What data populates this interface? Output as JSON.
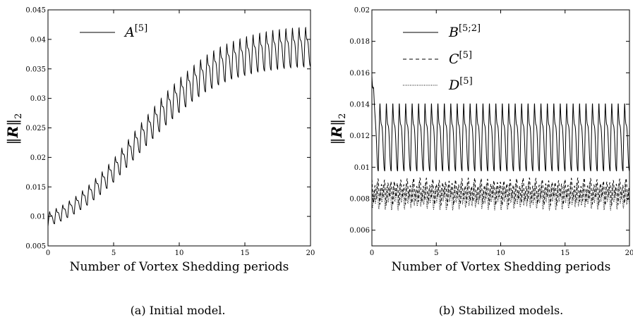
{
  "chart_data": [
    {
      "type": "line",
      "panel": "a",
      "caption": "(a) Initial model.",
      "xlabel": "Number of Vortex Shedding periods",
      "ylabel": "||R||2",
      "xlim": [
        0,
        20
      ],
      "ylim": [
        0.005,
        0.045
      ],
      "xticks": [
        "0",
        "5",
        "10",
        "15",
        "20"
      ],
      "yticks": [
        "0.005",
        "0.01",
        "0.015",
        "0.02",
        "0.025",
        "0.03",
        "0.035",
        "0.04",
        "0.045"
      ],
      "legend_position": "top-left",
      "series": [
        {
          "name": "A[5]",
          "dash": "solid",
          "periods_per_unit": 2,
          "x": [
            0,
            1,
            2,
            3,
            4,
            5,
            6,
            7,
            8,
            9,
            10,
            11,
            12,
            13,
            14,
            15,
            16,
            17,
            18,
            19,
            20
          ],
          "y_mean": [
            0.0095,
            0.0105,
            0.0118,
            0.0135,
            0.0155,
            0.0178,
            0.0205,
            0.0232,
            0.0258,
            0.0283,
            0.0305,
            0.0325,
            0.0342,
            0.0355,
            0.0365,
            0.0372,
            0.0378,
            0.0382,
            0.0385,
            0.0387,
            0.0388
          ],
          "y_amplitude": [
            0.0012,
            0.0013,
            0.0014,
            0.0016,
            0.0018,
            0.002,
            0.0022,
            0.0024,
            0.0026,
            0.0028,
            0.0029,
            0.003,
            0.0031,
            0.0032,
            0.0032,
            0.0033,
            0.0033,
            0.0034,
            0.0034,
            0.0034,
            0.0034
          ]
        }
      ]
    },
    {
      "type": "line",
      "panel": "b",
      "caption": "(b) Stabilized models.",
      "xlabel": "Number of Vortex Shedding periods",
      "ylabel": "||R||2",
      "xlim": [
        0,
        20
      ],
      "ylim": [
        0.005,
        0.02
      ],
      "xticks": [
        "0",
        "5",
        "10",
        "15",
        "20"
      ],
      "yticks": [
        "0.006",
        "0.008",
        "0.01",
        "0.012",
        "0.014",
        "0.016",
        "0.018",
        "0.02"
      ],
      "legend_position": "top-left",
      "series": [
        {
          "name": "B[5;2]",
          "dash": "solid",
          "periods_per_unit": 2,
          "y_mean": 0.01195,
          "y_amplitude": 0.0022,
          "y_start": 0.0158
        },
        {
          "name": "C[5]",
          "dash": "dashed",
          "periods_per_unit": 4,
          "y_mean": 0.00845,
          "y_amplitude": 0.0006
        },
        {
          "name": "D[5]",
          "dash": "dotted",
          "periods_per_unit": 4,
          "y_mean": 0.00815,
          "y_amplitude": 0.0006
        }
      ]
    }
  ]
}
